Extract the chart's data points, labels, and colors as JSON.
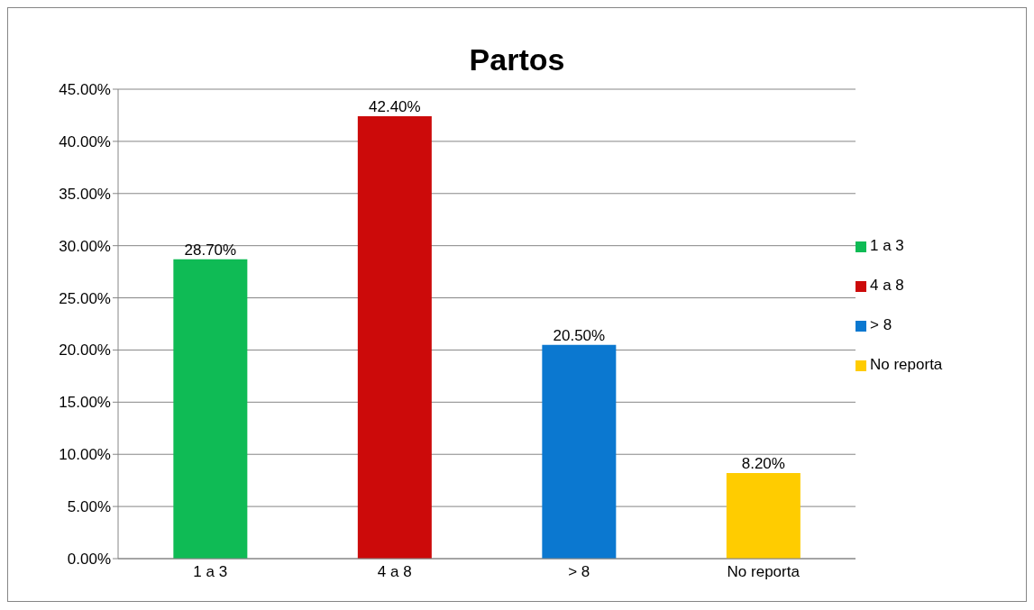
{
  "chart_data": {
    "type": "bar",
    "title": "Partos",
    "categories": [
      "1 a 3",
      "4 a 8",
      "> 8",
      "No reporta"
    ],
    "stacked": true,
    "series": [
      {
        "name": "1 a 3",
        "color": "#0fbb55",
        "values": [
          28.7,
          null,
          null,
          null
        ],
        "value_labels": [
          "28.70%",
          null,
          null,
          null
        ]
      },
      {
        "name": "4 a 8",
        "color": "#cc0a0a",
        "values": [
          null,
          42.4,
          null,
          null
        ],
        "value_labels": [
          null,
          "42.40%",
          null,
          null
        ]
      },
      {
        "name": "> 8",
        "color": "#0b78d0",
        "values": [
          null,
          null,
          20.5,
          null
        ],
        "value_labels": [
          null,
          null,
          "20.50%",
          null
        ]
      },
      {
        "name": "No reporta",
        "color": "#ffcc00",
        "values": [
          null,
          null,
          null,
          8.2
        ],
        "value_labels": [
          null,
          null,
          null,
          "8.20%"
        ]
      }
    ],
    "ylim": [
      0,
      45
    ],
    "yticks": [
      {
        "value": 0,
        "label": "0.00%"
      },
      {
        "value": 5,
        "label": "5.00%"
      },
      {
        "value": 10,
        "label": "10.00%"
      },
      {
        "value": 15,
        "label": "15.00%"
      },
      {
        "value": 20,
        "label": "20.00%"
      },
      {
        "value": 25,
        "label": "25.00%"
      },
      {
        "value": 30,
        "label": "30.00%"
      },
      {
        "value": 35,
        "label": "35.00%"
      },
      {
        "value": 40,
        "label": "40.00%"
      },
      {
        "value": 45,
        "label": "45.00%"
      }
    ],
    "grid": "y",
    "legend": "right"
  }
}
